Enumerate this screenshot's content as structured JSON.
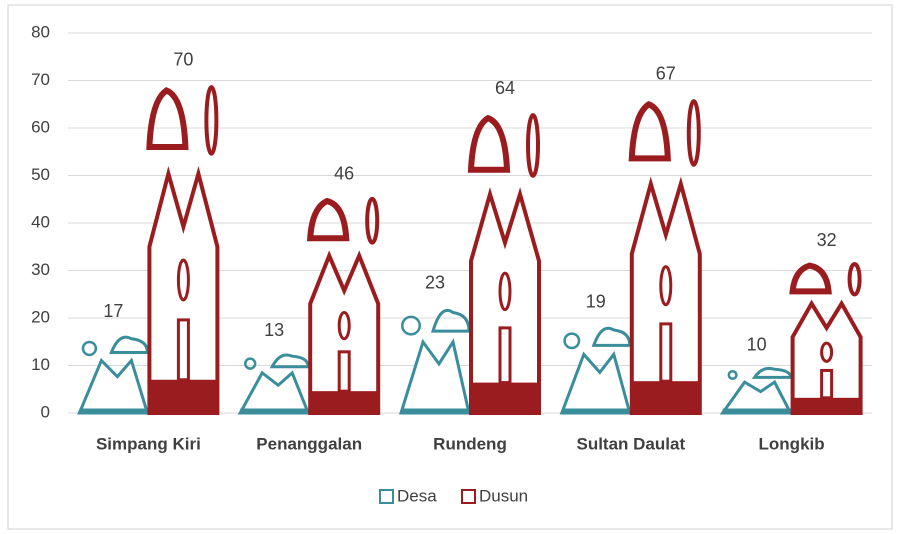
{
  "chart_data": {
    "type": "bar",
    "categories": [
      "Simpang Kiri",
      "Penanggalan",
      "Rundeng",
      "Sultan Daulat",
      "Longkib"
    ],
    "series": [
      {
        "name": "Desa",
        "color": "#3a8e9c",
        "values": [
          17,
          13,
          23,
          19,
          10
        ]
      },
      {
        "name": "Dusun",
        "color": "#9b1c1f",
        "values": [
          70,
          46,
          64,
          67,
          32
        ]
      }
    ],
    "ylim": [
      0,
      80
    ],
    "yticks": [
      0,
      10,
      20,
      30,
      40,
      50,
      60,
      70,
      80
    ],
    "grid": true,
    "legend": "bottom"
  }
}
